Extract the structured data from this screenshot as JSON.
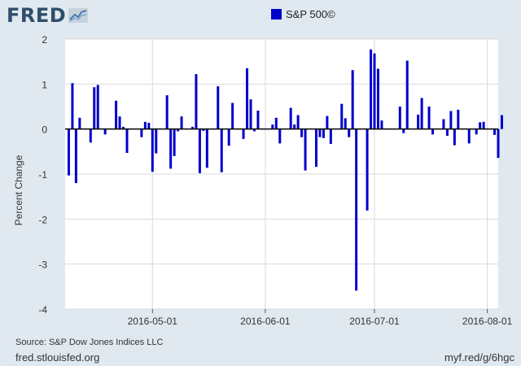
{
  "logo": {
    "text": "FRED",
    "icon": "chart-line-icon"
  },
  "footer": {
    "source": "Source: S&P Dow Jones Indices LLC",
    "site": "fred.stlouisfed.org",
    "short_url": "myf.red/g/6hgc"
  },
  "colors": {
    "bar": "#0000cc",
    "background": "#e1e9f0",
    "plot": "#ffffff",
    "grid": "#d9d9d9",
    "zero": "#000000"
  },
  "chart_data": {
    "type": "bar",
    "ylabel": "Percent Change",
    "ylim": [
      -4,
      2
    ],
    "yticks": [
      -4,
      -3,
      -2,
      -1,
      0,
      1,
      2
    ],
    "grid": true,
    "legend": "top-center",
    "x_range": [
      "2016-04-07",
      "2016-08-04"
    ],
    "xticks": [
      "2016-05-01",
      "2016-06-01",
      "2016-07-01",
      "2016-08-01"
    ],
    "series": [
      {
        "name": "S&P 500©",
        "color": "#0000cc",
        "points": [
          [
            "2016-04-08",
            -1.03
          ],
          [
            "2016-04-09",
            1.02
          ],
          [
            "2016-04-10",
            -1.2
          ],
          [
            "2016-04-11",
            0.25
          ],
          [
            "2016-04-14",
            -0.3
          ],
          [
            "2016-04-15",
            0.93
          ],
          [
            "2016-04-16",
            0.98
          ],
          [
            "2016-04-18",
            -0.12
          ],
          [
            "2016-04-21",
            0.63
          ],
          [
            "2016-04-22",
            0.28
          ],
          [
            "2016-04-23",
            0.05
          ],
          [
            "2016-04-24",
            -0.53
          ],
          [
            "2016-04-28",
            -0.18
          ],
          [
            "2016-04-29",
            0.16
          ],
          [
            "2016-04-30",
            0.14
          ],
          [
            "2016-05-01",
            -0.95
          ],
          [
            "2016-05-02",
            -0.54
          ],
          [
            "2016-05-05",
            0.75
          ],
          [
            "2016-05-06",
            -0.88
          ],
          [
            "2016-05-07",
            -0.6
          ],
          [
            "2016-05-08",
            -0.05
          ],
          [
            "2016-05-09",
            0.28
          ],
          [
            "2016-05-12",
            0.05
          ],
          [
            "2016-05-13",
            1.22
          ],
          [
            "2016-05-14",
            -0.98
          ],
          [
            "2016-05-15",
            -0.04
          ],
          [
            "2016-05-16",
            -0.86
          ],
          [
            "2016-05-19",
            0.95
          ],
          [
            "2016-05-20",
            -0.96
          ],
          [
            "2016-05-22",
            -0.37
          ],
          [
            "2016-05-23",
            0.58
          ],
          [
            "2016-05-26",
            -0.22
          ],
          [
            "2016-05-27",
            1.35
          ],
          [
            "2016-05-28",
            0.66
          ],
          [
            "2016-05-29",
            -0.05
          ],
          [
            "2016-05-30",
            0.41
          ],
          [
            "2016-06-03",
            0.1
          ],
          [
            "2016-06-04",
            0.25
          ],
          [
            "2016-06-05",
            -0.32
          ],
          [
            "2016-06-08",
            0.47
          ],
          [
            "2016-06-09",
            0.1
          ],
          [
            "2016-06-10",
            0.31
          ],
          [
            "2016-06-11",
            -0.18
          ],
          [
            "2016-06-12",
            -0.92
          ],
          [
            "2016-06-15",
            -0.84
          ],
          [
            "2016-06-16",
            -0.18
          ],
          [
            "2016-06-17",
            -0.2
          ],
          [
            "2016-06-18",
            0.29
          ],
          [
            "2016-06-19",
            -0.33
          ],
          [
            "2016-06-22",
            0.56
          ],
          [
            "2016-06-23",
            0.24
          ],
          [
            "2016-06-24",
            -0.18
          ],
          [
            "2016-06-25",
            1.31
          ],
          [
            "2016-06-26",
            -3.59
          ],
          [
            "2016-06-29",
            -1.81
          ],
          [
            "2016-06-30",
            1.77
          ],
          [
            "2016-07-01",
            1.68
          ],
          [
            "2016-07-02",
            1.34
          ],
          [
            "2016-07-03",
            0.19
          ],
          [
            "2016-07-08",
            0.5
          ],
          [
            "2016-07-09",
            -0.09
          ],
          [
            "2016-07-10",
            1.52
          ],
          [
            "2016-07-13",
            0.32
          ],
          [
            "2016-07-14",
            0.69
          ],
          [
            "2016-07-16",
            0.5
          ],
          [
            "2016-07-17",
            -0.12
          ],
          [
            "2016-07-20",
            0.22
          ],
          [
            "2016-07-21",
            -0.15
          ],
          [
            "2016-07-22",
            0.4
          ],
          [
            "2016-07-23",
            -0.36
          ],
          [
            "2016-07-24",
            0.43
          ],
          [
            "2016-07-27",
            -0.32
          ],
          [
            "2016-07-29",
            -0.12
          ],
          [
            "2016-07-30",
            0.15
          ],
          [
            "2016-07-31",
            0.16
          ],
          [
            "2016-08-03",
            -0.13
          ],
          [
            "2016-08-04",
            -0.64
          ],
          [
            "2016-08-05",
            0.31
          ]
        ]
      }
    ]
  }
}
